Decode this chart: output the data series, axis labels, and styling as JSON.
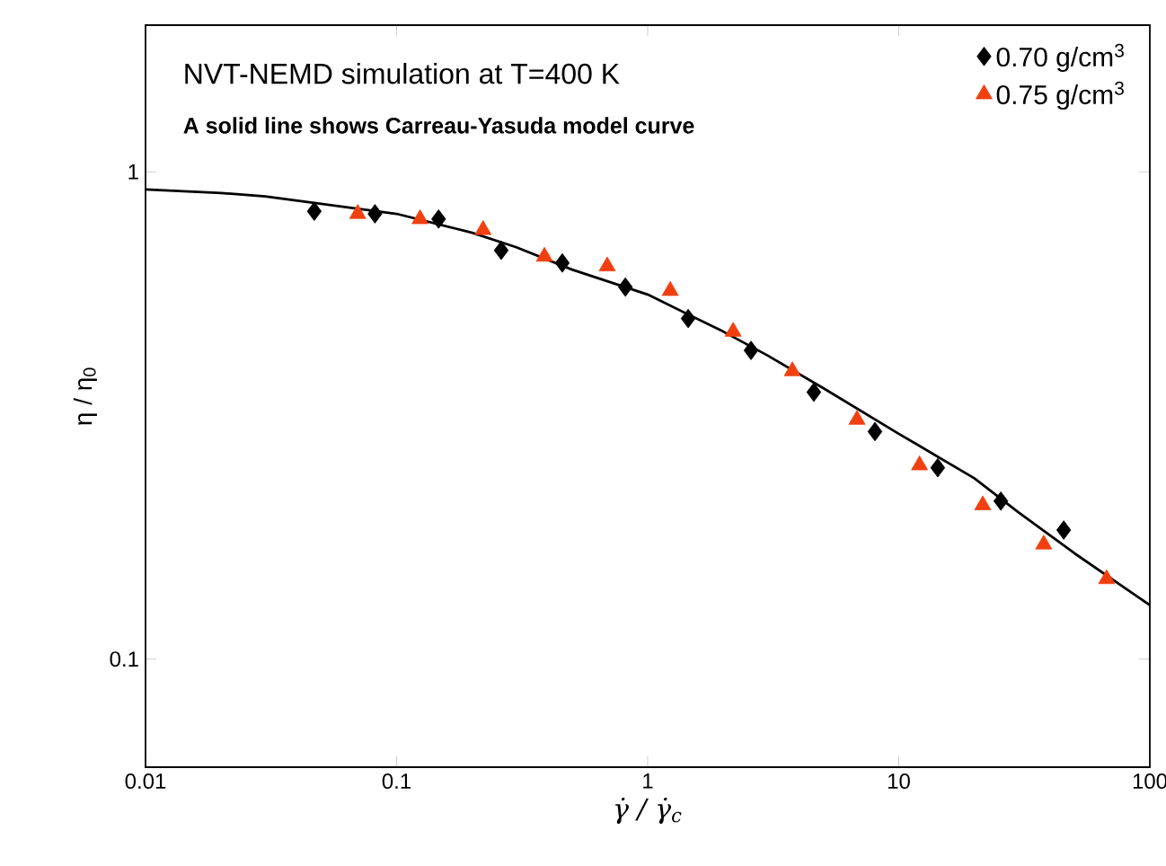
{
  "chart_data": {
    "type": "scatter",
    "xlabel": "γ̇ / γ̇$_{c}$",
    "ylabel": "η / η$_{0}$",
    "annotations": [
      "NVT-NEMD simulation at T=400 K",
      "A solid line shows Carreau-Yasuda model curve"
    ],
    "log": "xy",
    "xlim": [
      0.01,
      100
    ],
    "ylim": [
      0.06,
      2
    ],
    "xticks": [
      {
        "value": 0.01,
        "label": "0.01"
      },
      {
        "value": 0.1,
        "label": "0.1"
      },
      {
        "value": 1,
        "label": "1"
      },
      {
        "value": 10,
        "label": "10"
      },
      {
        "value": 100,
        "label": "100"
      }
    ],
    "yticks": [
      {
        "value": 0.1,
        "label": "0.1"
      },
      {
        "value": 1,
        "label": "1"
      }
    ],
    "legend": "top right",
    "series": [
      {
        "name": "0.70 g/cm$^{3}$",
        "color": "#000000",
        "marker": "diamond",
        "x": [
          0.047,
          0.082,
          0.147,
          0.261,
          0.457,
          0.815,
          1.45,
          2.58,
          4.59,
          8.04,
          14.3,
          25.5,
          45.4
        ],
        "values": [
          0.83,
          0.82,
          0.8,
          0.69,
          0.65,
          0.58,
          0.5,
          0.43,
          0.353,
          0.293,
          0.247,
          0.211,
          0.184
        ]
      },
      {
        "name": "0.75 g/cm$^{3}$",
        "color": "#f04010",
        "marker": "triangle",
        "x": [
          0.07,
          0.124,
          0.221,
          0.388,
          0.69,
          1.23,
          2.19,
          3.77,
          6.82,
          12.1,
          21.6,
          37.8,
          67.3
        ],
        "values": [
          0.82,
          0.8,
          0.76,
          0.67,
          0.64,
          0.57,
          0.47,
          0.39,
          0.31,
          0.25,
          0.207,
          0.172,
          0.146
        ]
      },
      {
        "type": "line",
        "color": "#000000",
        "marker": "none",
        "line_style": "solid",
        "x": [
          0.01,
          0.02,
          0.03,
          0.05,
          0.1,
          0.2,
          0.3,
          0.5,
          1,
          2,
          3,
          5,
          10,
          20,
          30,
          50,
          100
        ],
        "values": [
          0.92,
          0.905,
          0.89,
          0.86,
          0.82,
          0.75,
          0.7,
          0.63,
          0.56,
          0.47,
          0.42,
          0.36,
          0.29,
          0.235,
          0.2,
          0.165,
          0.129
        ]
      }
    ]
  }
}
